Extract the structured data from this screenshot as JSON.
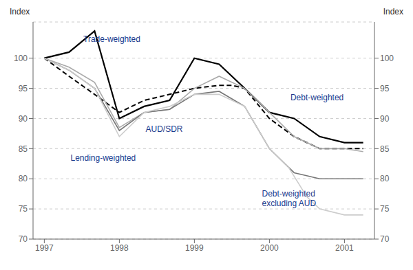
{
  "chart_data": {
    "type": "line",
    "ylabel": "Index",
    "y2label": "Index",
    "xlim": [
      1996.85,
      2001.4
    ],
    "xticks": [
      1997,
      1998,
      1999,
      2000,
      2001
    ],
    "ylim": [
      70,
      106
    ],
    "yticks": [
      70,
      75,
      80,
      85,
      90,
      95,
      100
    ],
    "y2lim": [
      70,
      106
    ],
    "y2ticks": [
      70,
      75,
      80,
      85,
      90,
      95,
      100
    ],
    "grid": true,
    "series": [
      {
        "color": "#000000",
        "line_style": "solid",
        "x": [
          1997.0,
          1997.33,
          1997.67,
          1998.0,
          1998.33,
          1998.67,
          1999.0,
          1999.33,
          1999.67,
          2000.0,
          2000.33,
          2000.67,
          2001.0,
          2001.25
        ],
        "values": [
          100,
          101,
          104.5,
          90,
          92,
          93,
          100,
          99,
          95,
          91,
          90,
          87,
          86,
          86
        ]
      },
      {
        "color": "#000000",
        "line_style": "dashed",
        "x": [
          1997.0,
          1997.33,
          1997.67,
          1998.0,
          1998.33,
          1998.67,
          1999.0,
          1999.33,
          1999.5,
          1999.67,
          2000.0,
          2000.33,
          2000.67,
          2001.0,
          2001.25
        ],
        "values": [
          100,
          97,
          94,
          91,
          93,
          94,
          95,
          95.5,
          95.5,
          95,
          90,
          87,
          85,
          85,
          85
        ]
      },
      {
        "color": "#aaaaaa",
        "line_style": "solid",
        "x": [
          1997.0,
          1997.33,
          1997.67,
          1998.0,
          1998.33,
          1998.67,
          1999.0,
          1999.33,
          1999.67,
          2000.0,
          2000.33,
          2000.67,
          2001.0,
          2001.25
        ],
        "values": [
          100,
          98.5,
          96,
          88.5,
          91,
          91.5,
          95,
          97,
          95,
          91,
          87,
          85,
          85,
          84.5
        ]
      },
      {
        "color": "#777777",
        "line_style": "solid",
        "x": [
          1997.0,
          1997.33,
          1997.67,
          1998.0,
          1998.33,
          1998.67,
          1999.0,
          1999.33,
          1999.67,
          2000.0,
          2000.33,
          2000.67,
          2001.0,
          2001.25
        ],
        "values": [
          100,
          98,
          95,
          88,
          91,
          91.5,
          94,
          94.5,
          92,
          85,
          81,
          80,
          80,
          80
        ]
      },
      {
        "color": "#cccccc",
        "line_style": "solid",
        "x": [
          1997.0,
          1997.33,
          1997.67,
          1998.0,
          1998.33,
          1998.67,
          1999.0,
          1999.33,
          1999.67,
          2000.0,
          2000.25,
          2000.5,
          2000.67,
          2001.0,
          2001.25
        ],
        "values": [
          100,
          98,
          95,
          87,
          91,
          92,
          94,
          94,
          92,
          85,
          82,
          77,
          75,
          74,
          74
        ]
      }
    ],
    "annotations": [
      {
        "text": "Trade-weighted",
        "x": 1997.52,
        "y": 103.2,
        "color": "#1a3a8c"
      },
      {
        "text": "AUD/SDR",
        "x": 1998.35,
        "y": 88.2,
        "color": "#1a3a8c"
      },
      {
        "text": "Lending-weighted",
        "x": 1997.35,
        "y": 83.5,
        "color": "#1a3a8c"
      },
      {
        "text": "Debt-weighted",
        "x": 2000.28,
        "y": 93.5,
        "color": "#1a3a8c"
      },
      {
        "text": "Debt-weighted\nexcluding AUD",
        "x": 1999.9,
        "y": 77.5,
        "color": "#1a3a8c"
      }
    ]
  }
}
